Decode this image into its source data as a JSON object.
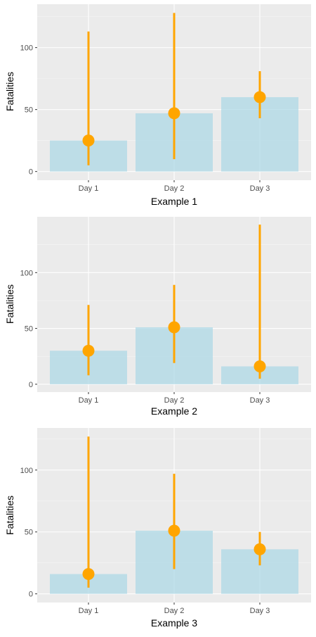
{
  "colors": {
    "panel_bg": "#ebebeb",
    "grid_major": "#ffffff",
    "grid_minor": "#f5f5f5",
    "bar_fill": "#add8e6",
    "bar_opacity": 0.75,
    "point_color": "#ffa500",
    "tick_color": "#333333"
  },
  "chart_data": [
    {
      "type": "bar",
      "xlabel": "Example 1",
      "ylabel": "Fatalities",
      "categories": [
        "Day 1",
        "Day 2",
        "Day 3"
      ],
      "values": [
        25,
        47,
        60
      ],
      "points": [
        25,
        47,
        60
      ],
      "error_low": [
        5,
        10,
        43
      ],
      "error_high": [
        113,
        128,
        81
      ],
      "ylim": [
        -7,
        135
      ],
      "yticks": [
        0,
        50,
        100
      ],
      "ytick_labels": [
        "0",
        "50",
        "100"
      ],
      "grid": true
    },
    {
      "type": "bar",
      "xlabel": "Example 2",
      "ylabel": "Fatalities",
      "categories": [
        "Day 1",
        "Day 2",
        "Day 3"
      ],
      "values": [
        30,
        51,
        16
      ],
      "points": [
        30,
        51,
        16
      ],
      "error_low": [
        8,
        19,
        5
      ],
      "error_high": [
        71,
        89,
        143
      ],
      "ylim": [
        -7,
        150
      ],
      "yticks": [
        0,
        50,
        100
      ],
      "ytick_labels": [
        "0",
        "50",
        "100"
      ],
      "grid": true
    },
    {
      "type": "bar",
      "xlabel": "Example 3",
      "ylabel": "Fatalities",
      "categories": [
        "Day 1",
        "Day 2",
        "Day 3"
      ],
      "values": [
        16,
        51,
        36
      ],
      "points": [
        16,
        51,
        36
      ],
      "error_low": [
        5,
        20,
        23
      ],
      "error_high": [
        127,
        97,
        50
      ],
      "ylim": [
        -7,
        134
      ],
      "yticks": [
        0,
        50,
        100
      ],
      "ytick_labels": [
        "0",
        "50",
        "100"
      ],
      "grid": true
    }
  ]
}
